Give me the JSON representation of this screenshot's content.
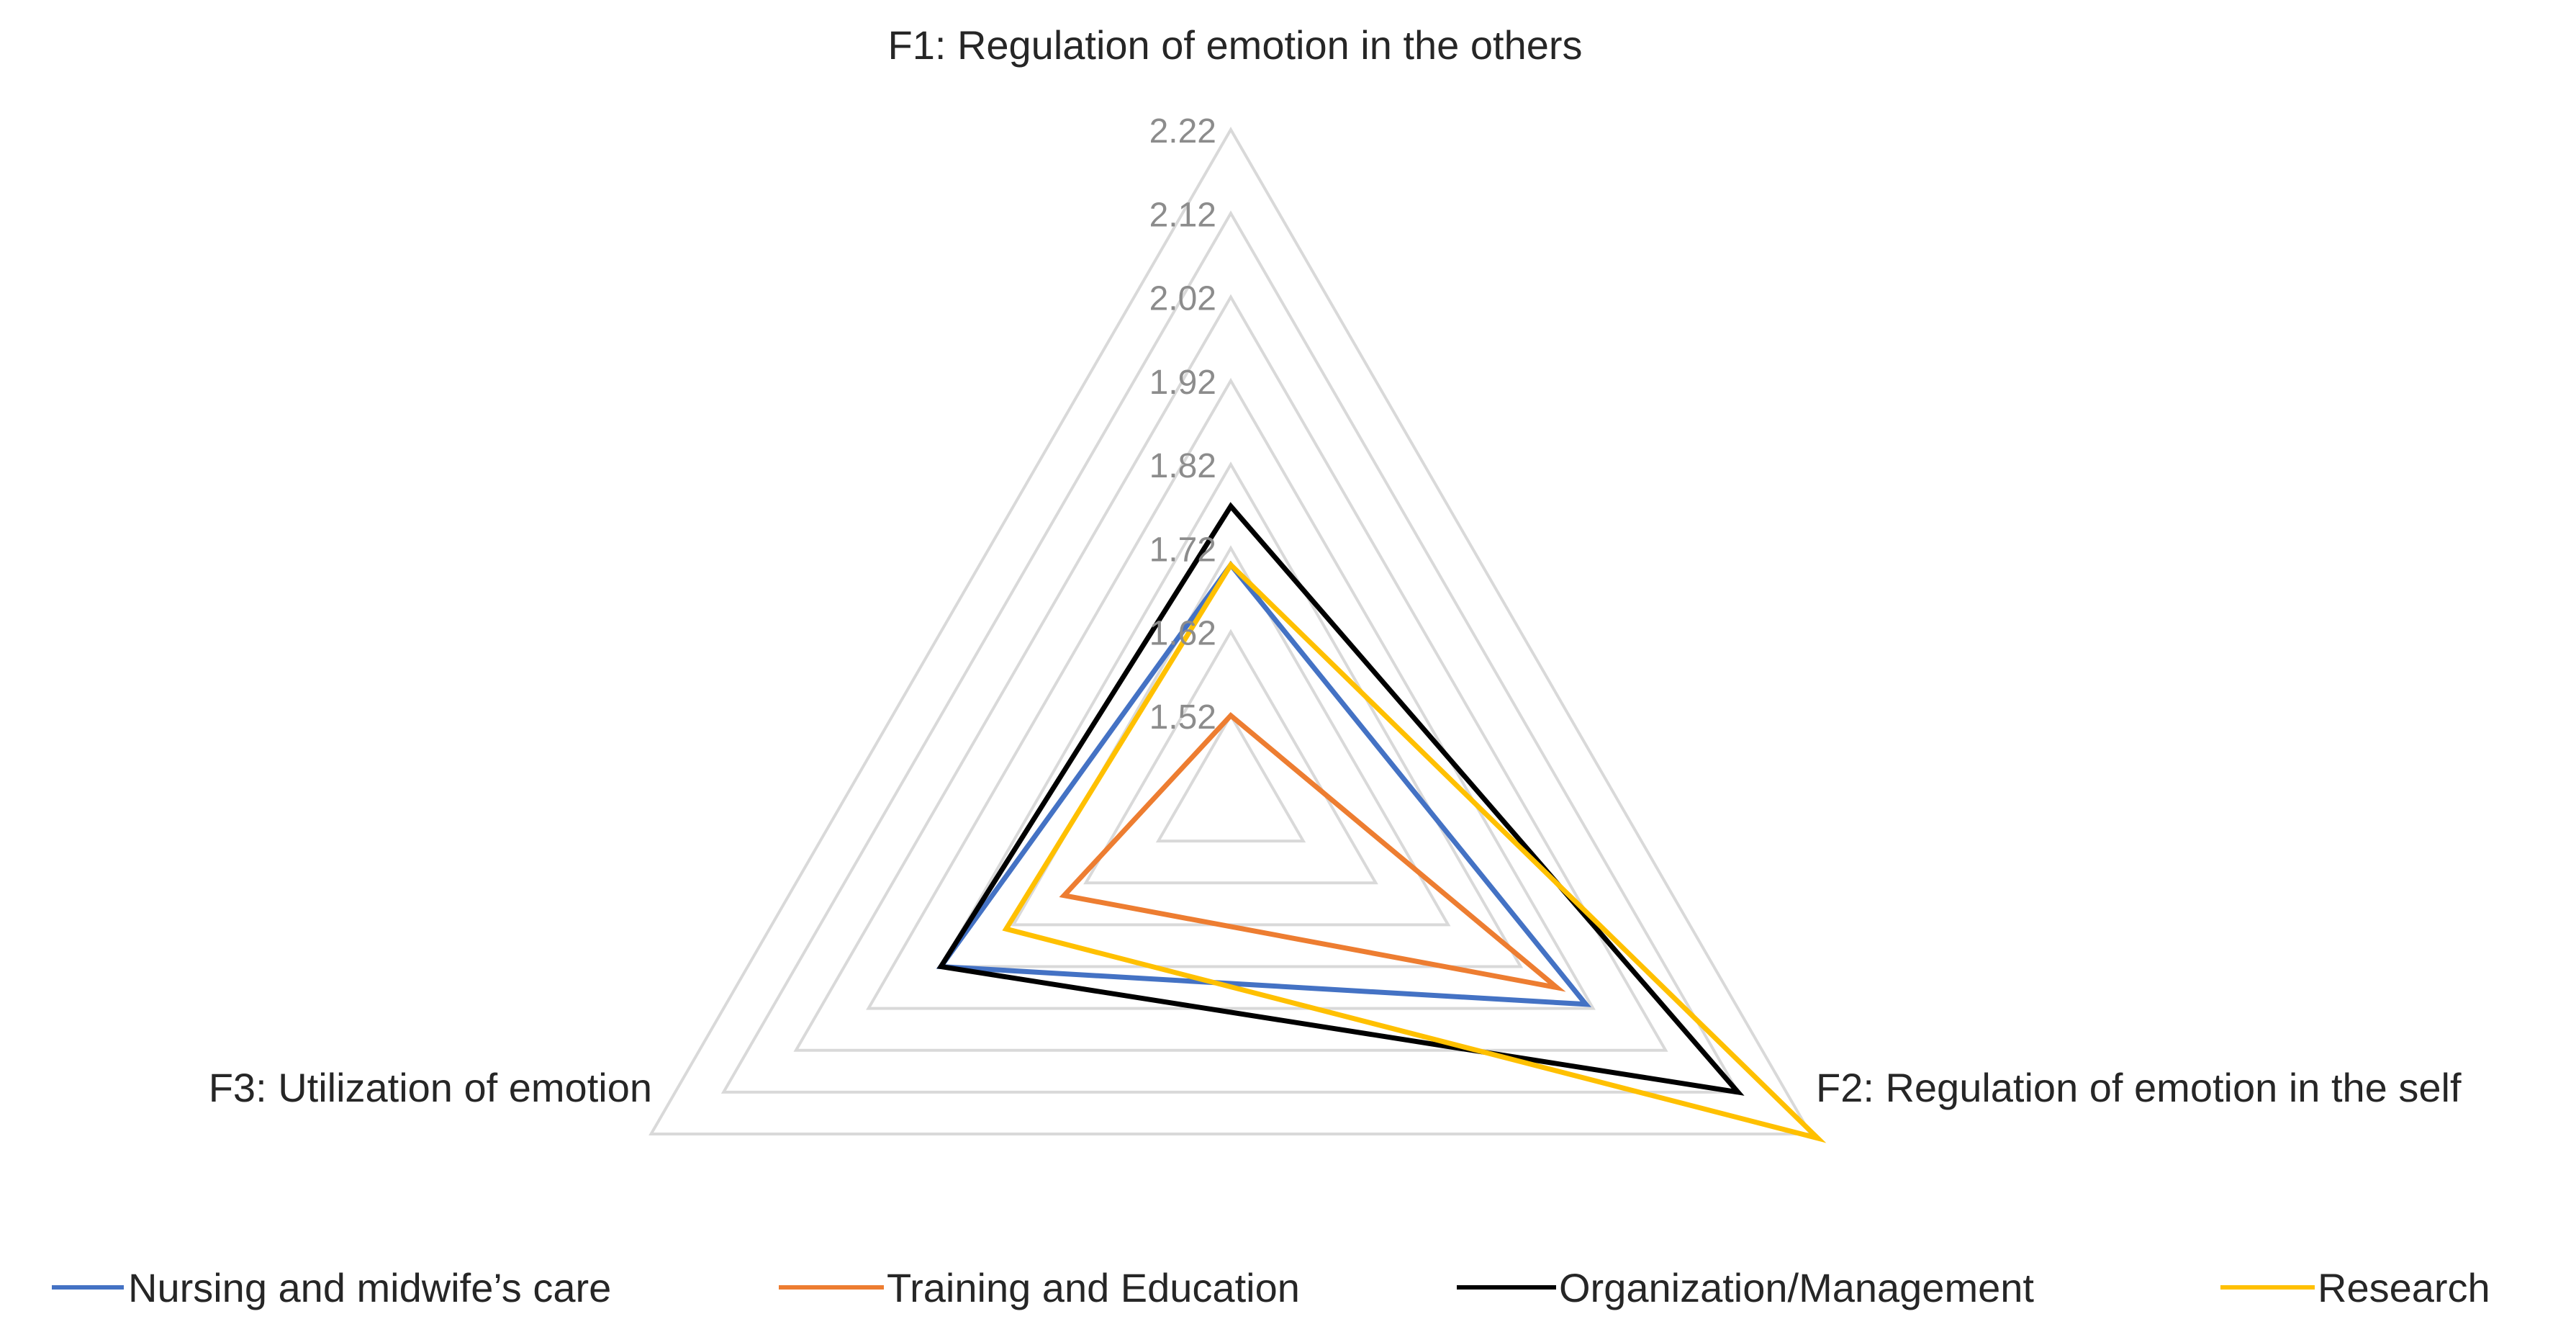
{
  "chart_data": {
    "type": "radar",
    "axes": [
      "F1: Regulation of emotion in the others",
      "F2: Regulation of emotion in the self",
      "F3: Utilization of emotion"
    ],
    "tick_labels": [
      "1.52",
      "1.62",
      "1.72",
      "1.82",
      "1.92",
      "2.02",
      "2.12",
      "2.22"
    ],
    "ticks": [
      1.42,
      1.52,
      1.62,
      1.72,
      1.82,
      1.92,
      2.02,
      2.12,
      2.22
    ],
    "range": [
      1.42,
      2.22
    ],
    "grid": true,
    "legend_position": "bottom",
    "series": [
      {
        "name": "Nursing and midwife’s care",
        "color": "#4472C4",
        "values": [
          1.7,
          1.91,
          1.82
        ]
      },
      {
        "name": "Training and Education",
        "color": "#ED7D31",
        "values": [
          1.52,
          1.87,
          1.65
        ]
      },
      {
        "name": "Organization/Management",
        "color": "#000000",
        "values": [
          1.77,
          2.12,
          1.82
        ]
      },
      {
        "name": "Research",
        "color": "#FFC000",
        "values": [
          1.7,
          2.23,
          1.73
        ]
      }
    ]
  }
}
